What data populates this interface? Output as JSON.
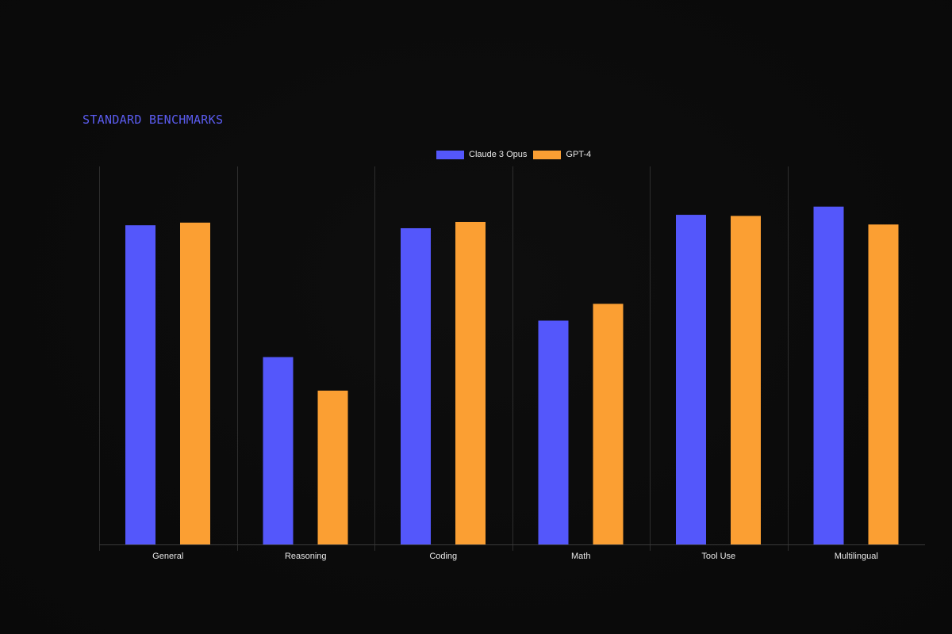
{
  "title": "STANDARD BENCHMARKS",
  "chart_data": {
    "type": "bar",
    "title": "STANDARD BENCHMARKS",
    "xlabel": "",
    "ylabel": "",
    "categories": [
      "General",
      "Reasoning",
      "Coding",
      "Math",
      "Tool Use",
      "Multilingual"
    ],
    "series": [
      {
        "name": "Claude 3 Opus",
        "color": "#5457fb",
        "values": [
          85.7,
          50.3,
          84.9,
          60.1,
          88.5,
          90.7
        ]
      },
      {
        "name": "GPT-4",
        "color": "#fb9f33",
        "values": [
          86.4,
          41.3,
          86.6,
          64.6,
          88.2,
          85.9
        ]
      }
    ],
    "ylim": [
      0,
      100
    ],
    "grid": false,
    "legend_position": "top-center"
  }
}
